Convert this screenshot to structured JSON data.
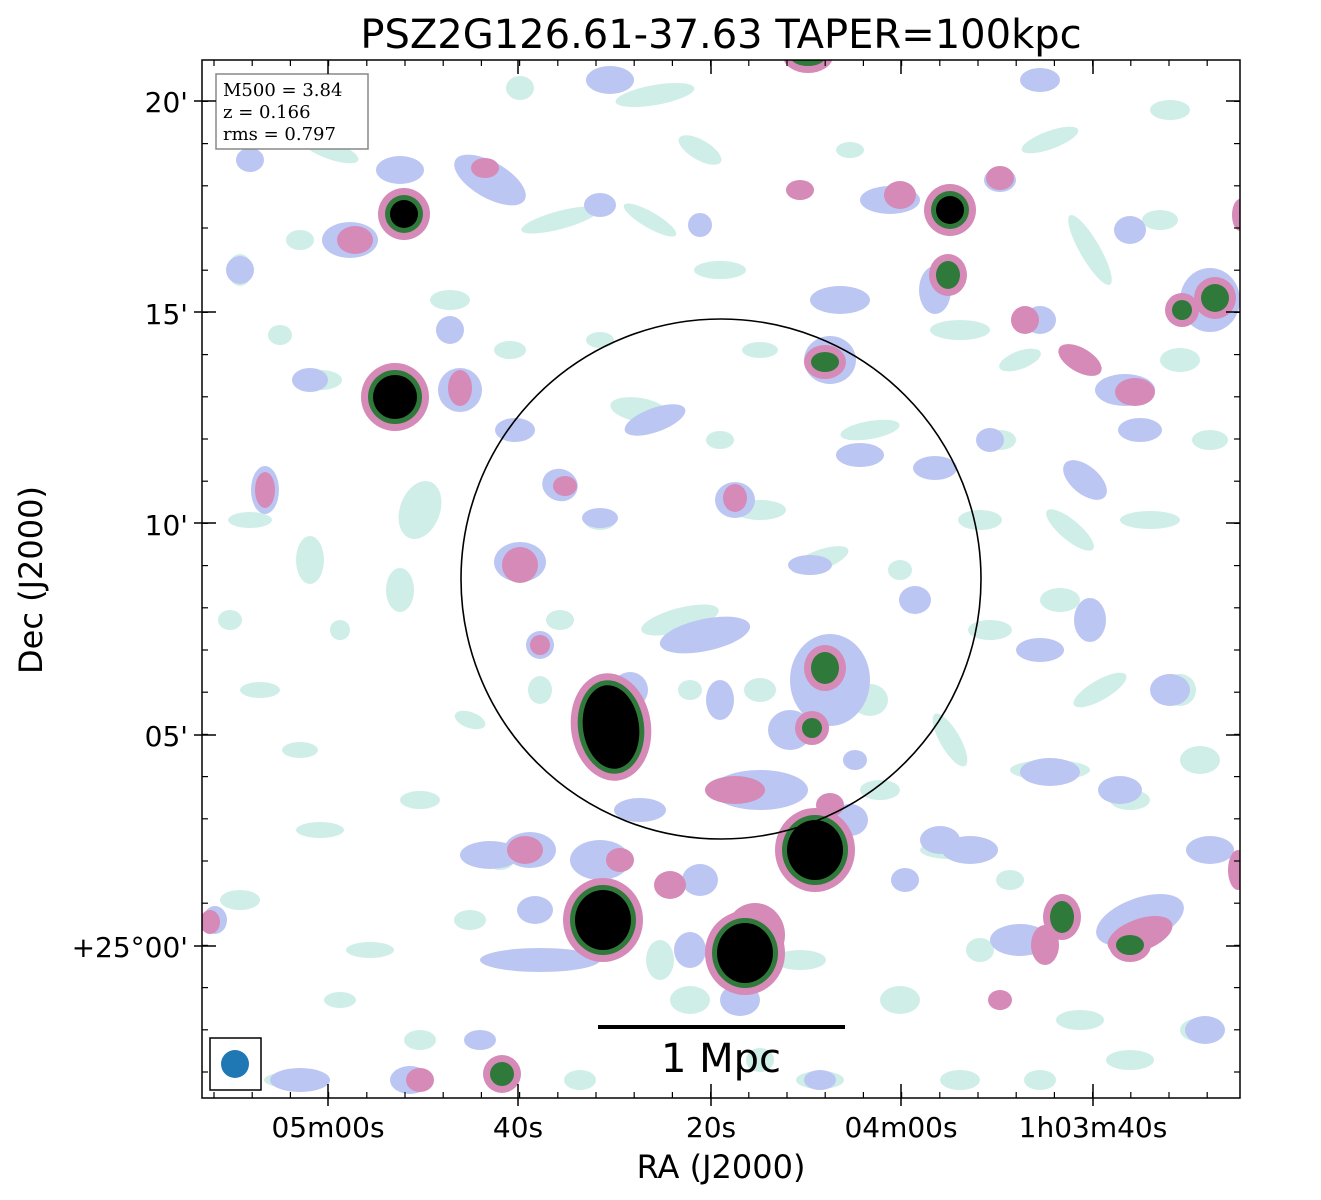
{
  "title": "PSZ2G126.61-37.63 TAPER=100kpc",
  "xlabel": "RA (J2000)",
  "ylabel": "Dec (J2000)",
  "xticks": [
    "05m00s",
    "40s",
    "20s",
    "04m00s",
    "1h03m40s"
  ],
  "yticks": [
    "20'",
    "15'",
    "10'",
    "05'",
    "+25°00'"
  ],
  "info": {
    "m500": "M500 = 3.84",
    "z": "z = 0.166",
    "rms": "rms = 0.797"
  },
  "scalebar": {
    "label": "1 Mpc"
  },
  "colors": {
    "background": "#ffffff",
    "faint": "#cfeee8",
    "low": "#bcc6f2",
    "mid": "#d58ab8",
    "high": "#2f7a3a",
    "peak": "#000000",
    "beam": "#1f77b4"
  }
}
